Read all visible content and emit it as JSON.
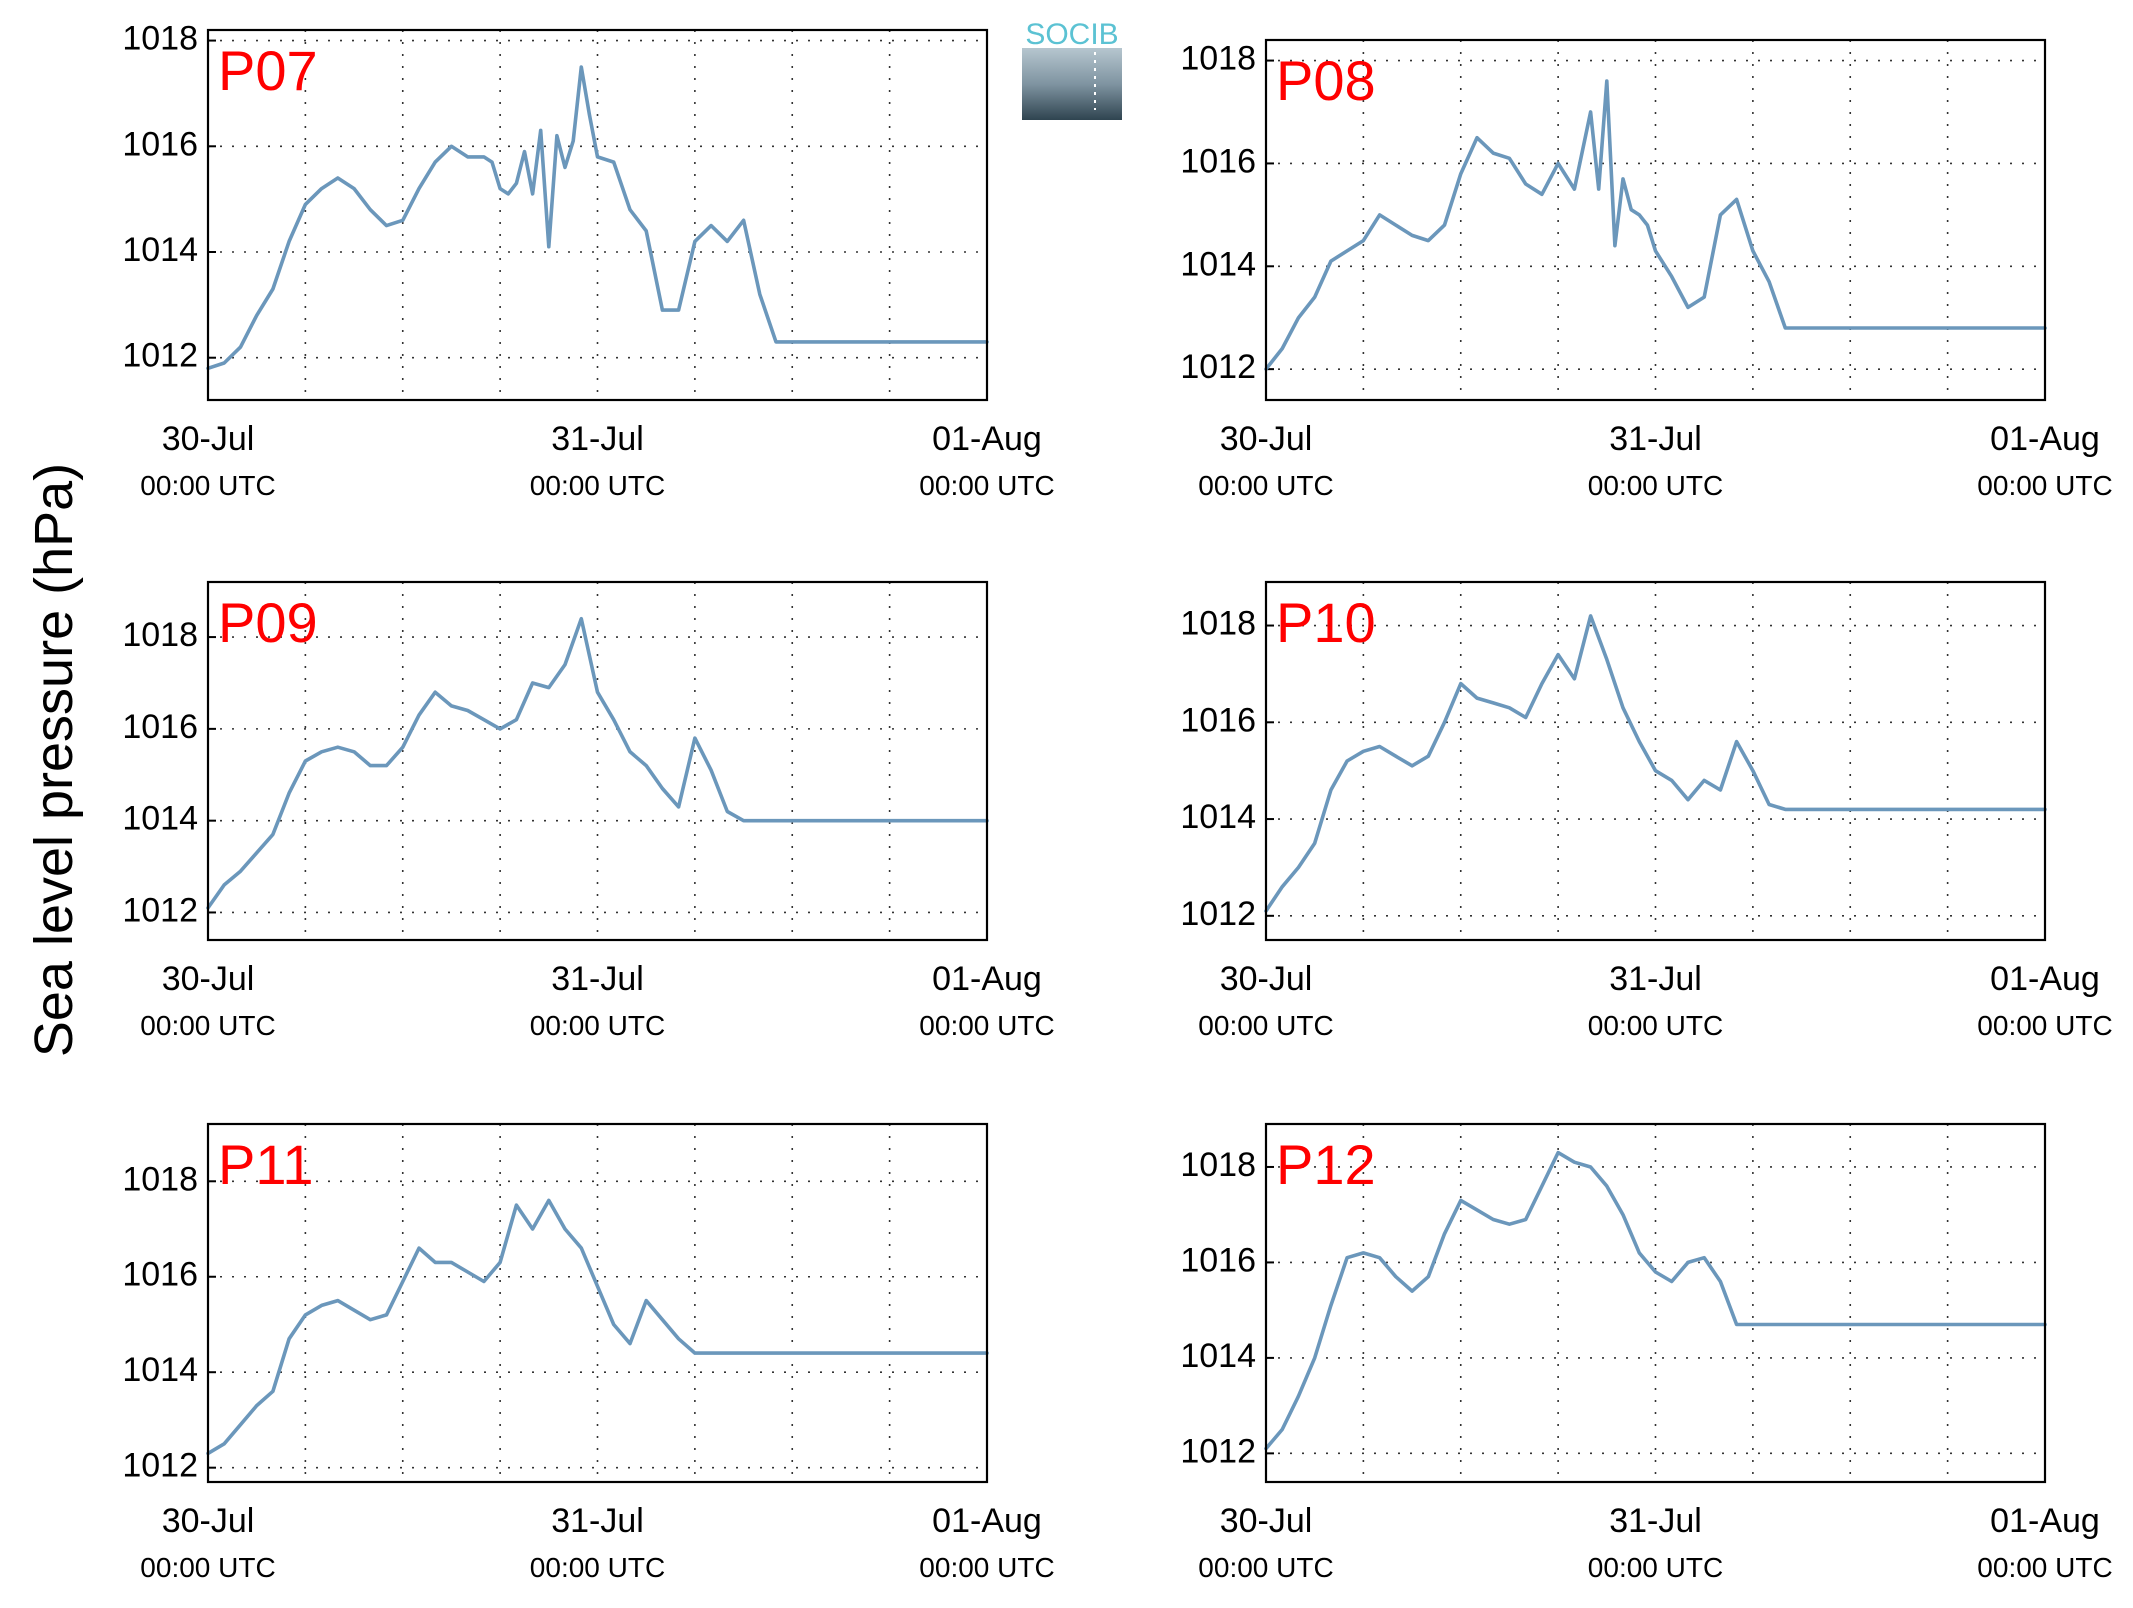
{
  "ylabel": "Sea level pressure (hPa)",
  "logo": {
    "text": "SOCIB",
    "colors": [
      "#5bc2d3",
      "#8a9ca8",
      "#2f4450"
    ]
  },
  "line_color": "#6b97bb",
  "label_color": "#ff0000",
  "chart_data": [
    {
      "type": "line",
      "title": "P07",
      "x_ticks": [
        "30-Jul\n00:00 UTC",
        "31-Jul\n00:00 UTC",
        "01-Aug\n00:00 UTC"
      ],
      "xlim": [
        0,
        48
      ],
      "ylim": [
        1011.2,
        1018.2
      ],
      "yticks": [
        1012,
        1014,
        1016,
        1018
      ],
      "x": [
        0,
        1,
        2,
        3,
        4,
        5,
        6,
        7,
        8,
        9,
        10,
        11,
        12,
        13,
        14,
        15,
        16,
        17,
        17.5,
        18,
        18.5,
        19,
        19.5,
        20,
        20.5,
        21,
        21.5,
        22,
        22.5,
        23,
        23.5,
        24,
        25,
        26,
        27,
        28,
        29,
        30,
        31,
        32,
        33,
        34,
        35,
        36,
        37,
        38,
        39,
        40,
        41,
        42,
        43,
        44,
        45,
        46,
        47,
        48
      ],
      "y": [
        1011.8,
        1011.9,
        1012.2,
        1012.8,
        1013.3,
        1014.2,
        1014.9,
        1015.2,
        1015.4,
        1015.2,
        1014.8,
        1014.5,
        1014.6,
        1015.2,
        1015.7,
        1016.0,
        1015.8,
        1015.8,
        1015.7,
        1015.2,
        1015.1,
        1015.3,
        1015.9,
        1015.1,
        1016.3,
        1014.1,
        1016.2,
        1015.6,
        1016.1,
        1017.5,
        1016.6,
        1015.8,
        1015.7,
        1014.8,
        1014.4,
        1012.9,
        1012.9,
        1014.2,
        1014.5,
        1014.2,
        1014.6,
        1013.2,
        1012.3,
        1012.3,
        1012.3,
        1012.3,
        1012.3,
        1012.3,
        1012.3,
        1012.3,
        1012.3,
        1012.3,
        1012.3,
        1012.3,
        1012.3,
        1012.3
      ]
    },
    {
      "type": "line",
      "title": "P08",
      "x_ticks": [
        "30-Jul\n00:00 UTC",
        "31-Jul\n00:00 UTC",
        "01-Aug\n00:00 UTC"
      ],
      "xlim": [
        0,
        48
      ],
      "ylim": [
        1011.4,
        1018.4
      ],
      "yticks": [
        1012,
        1014,
        1016,
        1018
      ],
      "x": [
        0,
        1,
        2,
        3,
        4,
        5,
        6,
        7,
        8,
        9,
        10,
        11,
        12,
        13,
        14,
        15,
        16,
        17,
        18,
        19,
        20,
        20.5,
        21,
        21.5,
        22,
        22.5,
        23,
        23.5,
        24,
        25,
        26,
        27,
        28,
        29,
        30,
        31,
        32,
        33,
        34,
        35,
        36,
        37,
        38,
        39,
        40,
        41,
        42,
        43,
        44,
        45,
        46,
        47,
        48
      ],
      "y": [
        1012.0,
        1012.4,
        1013.0,
        1013.4,
        1014.1,
        1014.3,
        1014.5,
        1015.0,
        1014.8,
        1014.6,
        1014.5,
        1014.8,
        1015.8,
        1016.5,
        1016.2,
        1016.1,
        1015.6,
        1015.4,
        1016.0,
        1015.5,
        1017.0,
        1015.5,
        1017.6,
        1014.4,
        1015.7,
        1015.1,
        1015.0,
        1014.8,
        1014.3,
        1013.8,
        1013.2,
        1013.4,
        1015.0,
        1015.3,
        1014.3,
        1013.7,
        1012.8,
        1012.8,
        1012.8,
        1012.8,
        1012.8,
        1012.8,
        1012.8,
        1012.8,
        1012.8,
        1012.8,
        1012.8,
        1012.8,
        1012.8,
        1012.8,
        1012.8,
        1012.8,
        1012.8
      ]
    },
    {
      "type": "line",
      "title": "P09",
      "x_ticks": [
        "30-Jul\n00:00 UTC",
        "31-Jul\n00:00 UTC",
        "01-Aug\n00:00 UTC"
      ],
      "xlim": [
        0,
        48
      ],
      "ylim": [
        1011.4,
        1019.2
      ],
      "yticks": [
        1012,
        1014,
        1016,
        1018
      ],
      "x": [
        0,
        1,
        2,
        3,
        4,
        5,
        6,
        7,
        8,
        9,
        10,
        11,
        12,
        13,
        14,
        15,
        16,
        17,
        18,
        19,
        20,
        21,
        22,
        23,
        24,
        25,
        26,
        27,
        28,
        29,
        30,
        31,
        32,
        33,
        34,
        35,
        36,
        37,
        38,
        39,
        40,
        41,
        42,
        43,
        44,
        45,
        46,
        47,
        48
      ],
      "y": [
        1012.1,
        1012.6,
        1012.9,
        1013.3,
        1013.7,
        1014.6,
        1015.3,
        1015.5,
        1015.6,
        1015.5,
        1015.2,
        1015.2,
        1015.6,
        1016.3,
        1016.8,
        1016.5,
        1016.4,
        1016.2,
        1016.0,
        1016.2,
        1017.0,
        1016.9,
        1017.4,
        1018.4,
        1016.8,
        1016.2,
        1015.5,
        1015.2,
        1014.7,
        1014.3,
        1015.8,
        1015.1,
        1014.2,
        1014.0,
        1014.0,
        1014.0,
        1014.0,
        1014.0,
        1014.0,
        1014.0,
        1014.0,
        1014.0,
        1014.0,
        1014.0,
        1014.0,
        1014.0,
        1014.0,
        1014.0,
        1014.0
      ]
    },
    {
      "type": "line",
      "title": "P10",
      "x_ticks": [
        "30-Jul\n00:00 UTC",
        "31-Jul\n00:00 UTC",
        "01-Aug\n00:00 UTC"
      ],
      "xlim": [
        0,
        48
      ],
      "ylim": [
        1011.5,
        1018.9
      ],
      "yticks": [
        1012,
        1014,
        1016,
        1018
      ],
      "x": [
        0,
        1,
        2,
        3,
        4,
        5,
        6,
        7,
        8,
        9,
        10,
        11,
        12,
        13,
        14,
        15,
        16,
        17,
        18,
        19,
        20,
        21,
        22,
        23,
        24,
        25,
        26,
        27,
        28,
        29,
        30,
        31,
        32,
        33,
        34,
        35,
        36,
        37,
        38,
        39,
        40,
        41,
        42,
        43,
        44,
        45,
        46,
        47,
        48
      ],
      "y": [
        1012.1,
        1012.6,
        1013.0,
        1013.5,
        1014.6,
        1015.2,
        1015.4,
        1015.5,
        1015.3,
        1015.1,
        1015.3,
        1016.0,
        1016.8,
        1016.5,
        1016.4,
        1016.3,
        1016.1,
        1016.8,
        1017.4,
        1016.9,
        1018.2,
        1017.3,
        1016.3,
        1015.6,
        1015.0,
        1014.8,
        1014.4,
        1014.8,
        1014.6,
        1015.6,
        1015.0,
        1014.3,
        1014.2,
        1014.2,
        1014.2,
        1014.2,
        1014.2,
        1014.2,
        1014.2,
        1014.2,
        1014.2,
        1014.2,
        1014.2,
        1014.2,
        1014.2,
        1014.2,
        1014.2,
        1014.2,
        1014.2
      ]
    },
    {
      "type": "line",
      "title": "P11",
      "x_ticks": [
        "30-Jul\n00:00 UTC",
        "31-Jul\n00:00 UTC",
        "01-Aug\n00:00 UTC"
      ],
      "xlim": [
        0,
        48
      ],
      "ylim": [
        1011.7,
        1019.2
      ],
      "yticks": [
        1012,
        1014,
        1016,
        1018
      ],
      "x": [
        0,
        1,
        2,
        3,
        4,
        5,
        6,
        7,
        8,
        9,
        10,
        11,
        12,
        13,
        14,
        15,
        16,
        17,
        18,
        19,
        20,
        21,
        22,
        23,
        24,
        25,
        26,
        27,
        28,
        29,
        30,
        31,
        32,
        33,
        34,
        35,
        36,
        37,
        38,
        39,
        40,
        41,
        42,
        43,
        44,
        45,
        46,
        47,
        48
      ],
      "y": [
        1012.3,
        1012.5,
        1012.9,
        1013.3,
        1013.6,
        1014.7,
        1015.2,
        1015.4,
        1015.5,
        1015.3,
        1015.1,
        1015.2,
        1015.9,
        1016.6,
        1016.3,
        1016.3,
        1016.1,
        1015.9,
        1016.3,
        1017.5,
        1017.0,
        1017.6,
        1017.0,
        1016.6,
        1015.8,
        1015.0,
        1014.6,
        1015.5,
        1015.1,
        1014.7,
        1014.4,
        1014.4,
        1014.4,
        1014.4,
        1014.4,
        1014.4,
        1014.4,
        1014.4,
        1014.4,
        1014.4,
        1014.4,
        1014.4,
        1014.4,
        1014.4,
        1014.4,
        1014.4,
        1014.4,
        1014.4,
        1014.4
      ]
    },
    {
      "type": "line",
      "title": "P12",
      "x_ticks": [
        "30-Jul\n00:00 UTC",
        "31-Jul\n00:00 UTC",
        "01-Aug\n00:00 UTC"
      ],
      "xlim": [
        0,
        48
      ],
      "ylim": [
        1011.4,
        1018.9
      ],
      "yticks": [
        1012,
        1014,
        1016,
        1018
      ],
      "x": [
        0,
        1,
        2,
        3,
        4,
        5,
        6,
        7,
        8,
        9,
        10,
        11,
        12,
        13,
        14,
        15,
        16,
        17,
        18,
        19,
        20,
        21,
        22,
        23,
        24,
        25,
        26,
        27,
        28,
        29,
        30,
        31,
        32,
        33,
        34,
        35,
        36,
        37,
        38,
        39,
        40,
        41,
        42,
        43,
        44,
        45,
        46,
        47,
        48
      ],
      "y": [
        1012.1,
        1012.5,
        1013.2,
        1014.0,
        1015.1,
        1016.1,
        1016.2,
        1016.1,
        1015.7,
        1015.4,
        1015.7,
        1016.6,
        1017.3,
        1017.1,
        1016.9,
        1016.8,
        1016.9,
        1017.6,
        1018.3,
        1018.1,
        1018.0,
        1017.6,
        1017.0,
        1016.2,
        1015.8,
        1015.6,
        1016.0,
        1016.1,
        1015.6,
        1014.7,
        1014.7,
        1014.7,
        1014.7,
        1014.7,
        1014.7,
        1014.7,
        1014.7,
        1014.7,
        1014.7,
        1014.7,
        1014.7,
        1014.7,
        1014.7,
        1014.7,
        1014.7,
        1014.7,
        1014.7,
        1014.7,
        1014.7
      ]
    }
  ]
}
